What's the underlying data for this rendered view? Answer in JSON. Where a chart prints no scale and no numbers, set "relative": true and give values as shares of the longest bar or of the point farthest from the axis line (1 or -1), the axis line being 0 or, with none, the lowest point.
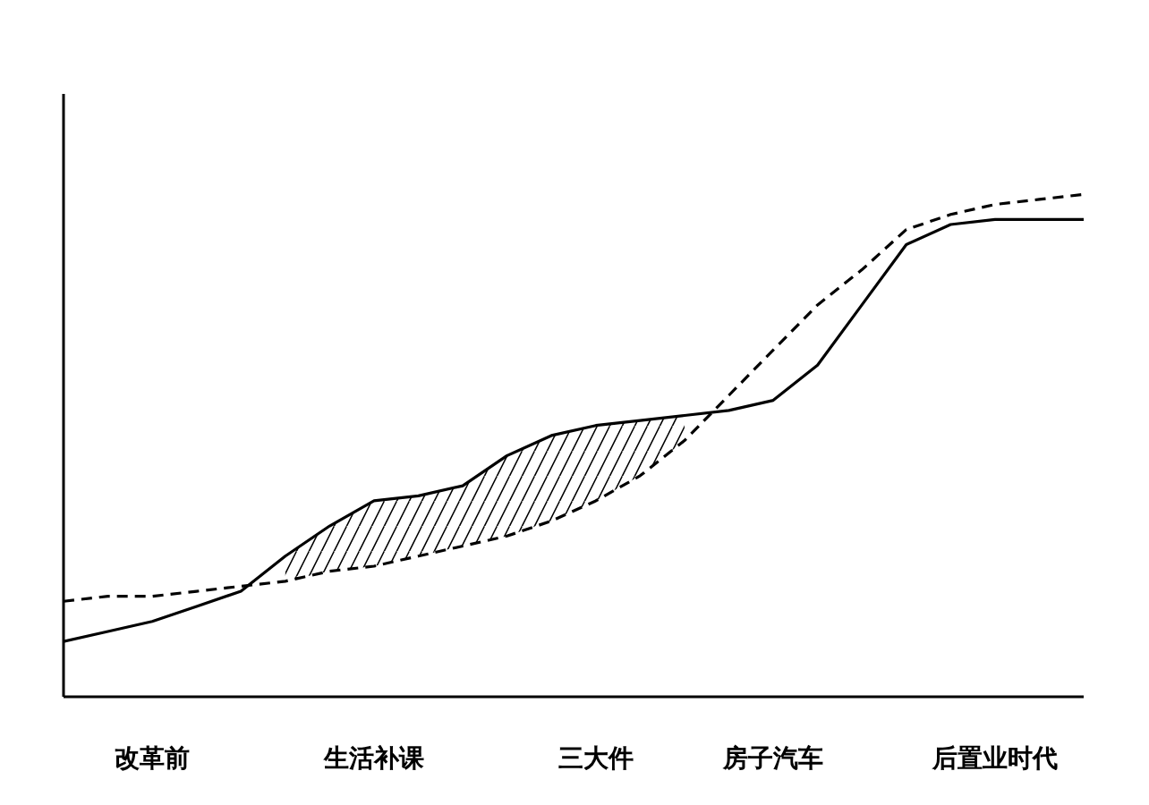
{
  "chart_data": {
    "type": "line",
    "relative": true,
    "categories": [
      null,
      null,
      "改革前",
      null,
      null,
      null,
      null,
      "生活补课",
      null,
      null,
      null,
      null,
      "三大件",
      null,
      null,
      null,
      "房子汽车",
      null,
      null,
      null,
      null,
      "后置业时代",
      null,
      null
    ],
    "series": [
      {
        "color": "#000000",
        "line_style": "solid",
        "values": [
          0.11,
          0.13,
          0.15,
          0.18,
          0.21,
          0.28,
          0.34,
          0.39,
          0.4,
          0.42,
          0.48,
          0.52,
          0.54,
          0.55,
          0.56,
          0.57,
          0.59,
          0.66,
          0.78,
          0.9,
          0.94,
          0.95,
          0.95,
          0.95
        ],
        "lower": [
          null,
          null,
          null,
          null,
          null,
          0.23,
          0.25,
          0.26,
          0.28,
          0.3,
          0.32,
          0.35,
          0.39,
          0.44,
          0.51,
          null,
          null,
          null,
          null,
          null,
          null,
          null,
          null,
          null
        ],
        "upper": [
          null,
          null,
          null,
          null,
          null,
          0.28,
          0.34,
          0.39,
          0.4,
          0.42,
          0.48,
          0.52,
          0.54,
          0.55,
          0.56,
          null,
          null,
          null,
          null,
          null,
          null,
          null,
          null,
          null
        ]
      },
      {
        "color": "#000000",
        "line_style": "dashed",
        "values": [
          0.19,
          0.2,
          0.2,
          0.21,
          0.22,
          0.23,
          0.25,
          0.26,
          0.28,
          0.3,
          0.32,
          0.35,
          0.39,
          0.44,
          0.51,
          0.6,
          0.69,
          0.78,
          0.85,
          0.93,
          0.96,
          0.98,
          0.99,
          1
        ]
      }
    ]
  }
}
